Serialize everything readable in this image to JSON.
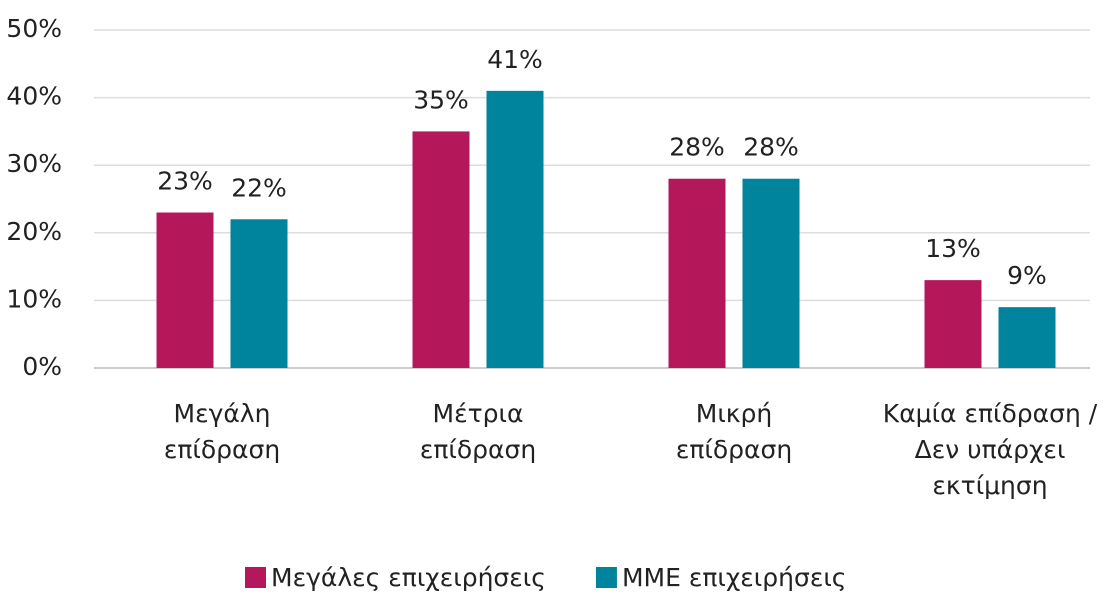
{
  "chart_data": {
    "type": "bar",
    "categories": [
      "Μεγάλη\nεπίδραση",
      "Μέτρια\nεπίδραση",
      "Μικρή\nεπίδραση",
      "Καμία επίδραση /\nΔεν υπάρχει\nεκτίμηση"
    ],
    "series": [
      {
        "name": "Μεγάλες επιχειρήσεις",
        "color": "#b5175b",
        "values": [
          23,
          35,
          28,
          13
        ],
        "value_labels": [
          "23%",
          "35%",
          "28%",
          "13%"
        ]
      },
      {
        "name": "ΜΜΕ επιχειρήσεις",
        "color": "#00839c",
        "values": [
          22,
          41,
          28,
          9
        ],
        "value_labels": [
          "22%",
          "41%",
          "28%",
          "9%"
        ]
      }
    ],
    "ylim": [
      0,
      50
    ],
    "yticks": [
      {
        "value": 0,
        "label": "0%"
      },
      {
        "value": 10,
        "label": "10%"
      },
      {
        "value": 20,
        "label": "20%"
      },
      {
        "value": 30,
        "label": "30%"
      },
      {
        "value": 40,
        "label": "40%"
      },
      {
        "value": 50,
        "label": "50%"
      }
    ],
    "grid": true,
    "legend": "bottom"
  }
}
